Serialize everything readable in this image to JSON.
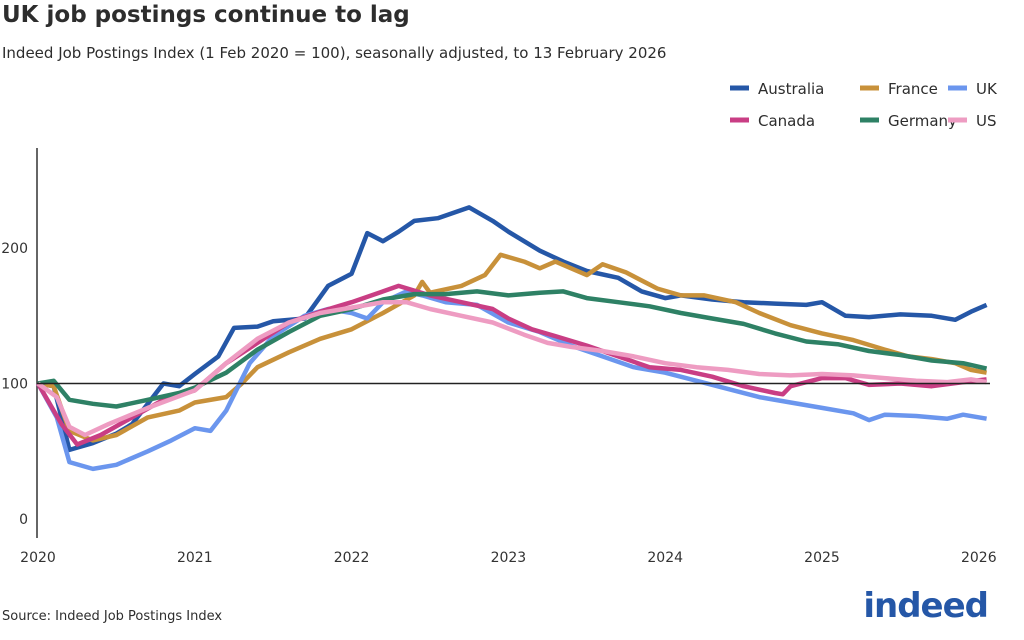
{
  "title": "UK job postings continue to lag",
  "subtitle": "Indeed Job Postings Index (1 Feb 2020 = 100), seasonally adjusted, to 13 February 2026",
  "source": "Source: Indeed Job Postings Index",
  "logo": "indeed",
  "chart_data": {
    "type": "line",
    "xlabel": "",
    "ylabel": "",
    "xlim": [
      2020,
      2026.1
    ],
    "ylim": [
      0,
      270
    ],
    "x_ticks": [
      "2020",
      "2021",
      "2022",
      "2023",
      "2024",
      "2025",
      "2026"
    ],
    "y_ticks": [
      "0",
      "100",
      "200"
    ],
    "reference_line": 100,
    "grid": false,
    "legend_placement": "top-right",
    "series": [
      {
        "name": "Australia",
        "color": "#2557a7",
        "points": [
          [
            2020,
            100
          ],
          [
            2020.1,
            98
          ],
          [
            2020.2,
            51
          ],
          [
            2020.35,
            56
          ],
          [
            2020.5,
            63
          ],
          [
            2020.6,
            70
          ],
          [
            2020.8,
            100
          ],
          [
            2020.9,
            98
          ],
          [
            2021.0,
            107
          ],
          [
            2021.15,
            120
          ],
          [
            2021.25,
            141
          ],
          [
            2021.4,
            142
          ],
          [
            2021.5,
            146
          ],
          [
            2021.7,
            148
          ],
          [
            2021.85,
            172
          ],
          [
            2022.0,
            181
          ],
          [
            2022.1,
            211
          ],
          [
            2022.2,
            205
          ],
          [
            2022.3,
            212
          ],
          [
            2022.4,
            220
          ],
          [
            2022.55,
            222
          ],
          [
            2022.75,
            230
          ],
          [
            2022.9,
            220
          ],
          [
            2023.0,
            212
          ],
          [
            2023.2,
            198
          ],
          [
            2023.35,
            190
          ],
          [
            2023.5,
            183
          ],
          [
            2023.7,
            178
          ],
          [
            2023.85,
            168
          ],
          [
            2024.0,
            163
          ],
          [
            2024.1,
            165
          ],
          [
            2024.3,
            162
          ],
          [
            2024.5,
            160
          ],
          [
            2024.7,
            159
          ],
          [
            2024.9,
            158
          ],
          [
            2025.0,
            160
          ],
          [
            2025.15,
            150
          ],
          [
            2025.3,
            149
          ],
          [
            2025.5,
            151
          ],
          [
            2025.7,
            150
          ],
          [
            2025.85,
            147
          ],
          [
            2025.95,
            153
          ],
          [
            2026.05,
            158
          ]
        ]
      },
      {
        "name": "France",
        "color": "#c8913a",
        "points": [
          [
            2020,
            100
          ],
          [
            2020.1,
            98
          ],
          [
            2020.2,
            65
          ],
          [
            2020.35,
            58
          ],
          [
            2020.5,
            62
          ],
          [
            2020.7,
            75
          ],
          [
            2020.9,
            80
          ],
          [
            2021.0,
            86
          ],
          [
            2021.2,
            90
          ],
          [
            2021.3,
            100
          ],
          [
            2021.4,
            112
          ],
          [
            2021.6,
            123
          ],
          [
            2021.8,
            133
          ],
          [
            2022.0,
            140
          ],
          [
            2022.2,
            152
          ],
          [
            2022.4,
            165
          ],
          [
            2022.45,
            175
          ],
          [
            2022.5,
            167
          ],
          [
            2022.7,
            172
          ],
          [
            2022.85,
            180
          ],
          [
            2022.95,
            195
          ],
          [
            2023.1,
            190
          ],
          [
            2023.2,
            185
          ],
          [
            2023.3,
            190
          ],
          [
            2023.5,
            180
          ],
          [
            2023.6,
            188
          ],
          [
            2023.75,
            182
          ],
          [
            2023.95,
            170
          ],
          [
            2024.1,
            165
          ],
          [
            2024.25,
            165
          ],
          [
            2024.45,
            160
          ],
          [
            2024.6,
            152
          ],
          [
            2024.8,
            143
          ],
          [
            2025.0,
            137
          ],
          [
            2025.2,
            132
          ],
          [
            2025.4,
            125
          ],
          [
            2025.55,
            120
          ],
          [
            2025.7,
            118
          ],
          [
            2025.85,
            115
          ],
          [
            2025.95,
            110
          ],
          [
            2026.05,
            108
          ]
        ]
      },
      {
        "name": "UK",
        "color": "#6b96ee",
        "points": [
          [
            2020,
            100
          ],
          [
            2020.12,
            75
          ],
          [
            2020.2,
            42
          ],
          [
            2020.35,
            37
          ],
          [
            2020.5,
            40
          ],
          [
            2020.7,
            50
          ],
          [
            2020.85,
            58
          ],
          [
            2021.0,
            67
          ],
          [
            2021.1,
            65
          ],
          [
            2021.2,
            80
          ],
          [
            2021.35,
            115
          ],
          [
            2021.5,
            135
          ],
          [
            2021.7,
            150
          ],
          [
            2021.85,
            155
          ],
          [
            2022.0,
            152
          ],
          [
            2022.1,
            148
          ],
          [
            2022.2,
            160
          ],
          [
            2022.35,
            168
          ],
          [
            2022.45,
            165
          ],
          [
            2022.6,
            160
          ],
          [
            2022.8,
            158
          ],
          [
            2023.0,
            145
          ],
          [
            2023.2,
            138
          ],
          [
            2023.4,
            128
          ],
          [
            2023.6,
            120
          ],
          [
            2023.8,
            112
          ],
          [
            2024.0,
            108
          ],
          [
            2024.2,
            102
          ],
          [
            2024.4,
            96
          ],
          [
            2024.6,
            90
          ],
          [
            2024.8,
            86
          ],
          [
            2025.0,
            82
          ],
          [
            2025.2,
            78
          ],
          [
            2025.3,
            73
          ],
          [
            2025.4,
            77
          ],
          [
            2025.6,
            76
          ],
          [
            2025.8,
            74
          ],
          [
            2025.9,
            77
          ],
          [
            2026.05,
            74
          ]
        ]
      },
      {
        "name": "Canada",
        "color": "#c93e84",
        "points": [
          [
            2020,
            100
          ],
          [
            2020.15,
            70
          ],
          [
            2020.25,
            55
          ],
          [
            2020.4,
            62
          ],
          [
            2020.6,
            75
          ],
          [
            2020.8,
            88
          ],
          [
            2021.0,
            95
          ],
          [
            2021.2,
            115
          ],
          [
            2021.4,
            130
          ],
          [
            2021.6,
            145
          ],
          [
            2021.8,
            153
          ],
          [
            2022.0,
            160
          ],
          [
            2022.2,
            168
          ],
          [
            2022.3,
            172
          ],
          [
            2022.5,
            165
          ],
          [
            2022.7,
            160
          ],
          [
            2022.9,
            155
          ],
          [
            2023.0,
            148
          ],
          [
            2023.15,
            140
          ],
          [
            2023.3,
            135
          ],
          [
            2023.5,
            128
          ],
          [
            2023.7,
            120
          ],
          [
            2023.9,
            112
          ],
          [
            2024.1,
            110
          ],
          [
            2024.3,
            105
          ],
          [
            2024.5,
            98
          ],
          [
            2024.7,
            93
          ],
          [
            2024.75,
            92
          ],
          [
            2024.8,
            98
          ],
          [
            2025.0,
            104
          ],
          [
            2025.15,
            104
          ],
          [
            2025.3,
            99
          ],
          [
            2025.5,
            100
          ],
          [
            2025.7,
            98
          ],
          [
            2025.9,
            101
          ],
          [
            2026.05,
            103
          ]
        ]
      },
      {
        "name": "Germany",
        "color": "#2e8165",
        "points": [
          [
            2020,
            100
          ],
          [
            2020.1,
            102
          ],
          [
            2020.2,
            88
          ],
          [
            2020.35,
            85
          ],
          [
            2020.5,
            83
          ],
          [
            2020.7,
            88
          ],
          [
            2020.9,
            93
          ],
          [
            2021.0,
            97
          ],
          [
            2021.2,
            108
          ],
          [
            2021.4,
            125
          ],
          [
            2021.6,
            138
          ],
          [
            2021.8,
            150
          ],
          [
            2022.0,
            155
          ],
          [
            2022.2,
            162
          ],
          [
            2022.4,
            166
          ],
          [
            2022.6,
            166
          ],
          [
            2022.8,
            168
          ],
          [
            2023.0,
            165
          ],
          [
            2023.2,
            167
          ],
          [
            2023.35,
            168
          ],
          [
            2023.5,
            163
          ],
          [
            2023.7,
            160
          ],
          [
            2023.9,
            157
          ],
          [
            2024.1,
            152
          ],
          [
            2024.3,
            148
          ],
          [
            2024.5,
            144
          ],
          [
            2024.7,
            137
          ],
          [
            2024.9,
            131
          ],
          [
            2025.1,
            129
          ],
          [
            2025.3,
            124
          ],
          [
            2025.5,
            121
          ],
          [
            2025.7,
            117
          ],
          [
            2025.9,
            115
          ],
          [
            2026.05,
            111
          ]
        ]
      },
      {
        "name": "US",
        "color": "#ee9cc2",
        "points": [
          [
            2020,
            100
          ],
          [
            2020.12,
            90
          ],
          [
            2020.2,
            68
          ],
          [
            2020.3,
            62
          ],
          [
            2020.45,
            70
          ],
          [
            2020.7,
            82
          ],
          [
            2021.0,
            95
          ],
          [
            2021.2,
            115
          ],
          [
            2021.4,
            133
          ],
          [
            2021.6,
            145
          ],
          [
            2021.8,
            152
          ],
          [
            2022.0,
            156
          ],
          [
            2022.2,
            160
          ],
          [
            2022.35,
            160
          ],
          [
            2022.5,
            155
          ],
          [
            2022.7,
            150
          ],
          [
            2022.9,
            145
          ],
          [
            2023.1,
            136
          ],
          [
            2023.25,
            130
          ],
          [
            2023.4,
            127
          ],
          [
            2023.6,
            124
          ],
          [
            2023.8,
            120
          ],
          [
            2024.0,
            115
          ],
          [
            2024.2,
            112
          ],
          [
            2024.4,
            110
          ],
          [
            2024.6,
            107
          ],
          [
            2024.8,
            106
          ],
          [
            2025.0,
            107
          ],
          [
            2025.2,
            106
          ],
          [
            2025.4,
            104
          ],
          [
            2025.6,
            102
          ],
          [
            2025.8,
            101
          ],
          [
            2025.95,
            103
          ],
          [
            2026.05,
            101
          ]
        ]
      }
    ]
  }
}
